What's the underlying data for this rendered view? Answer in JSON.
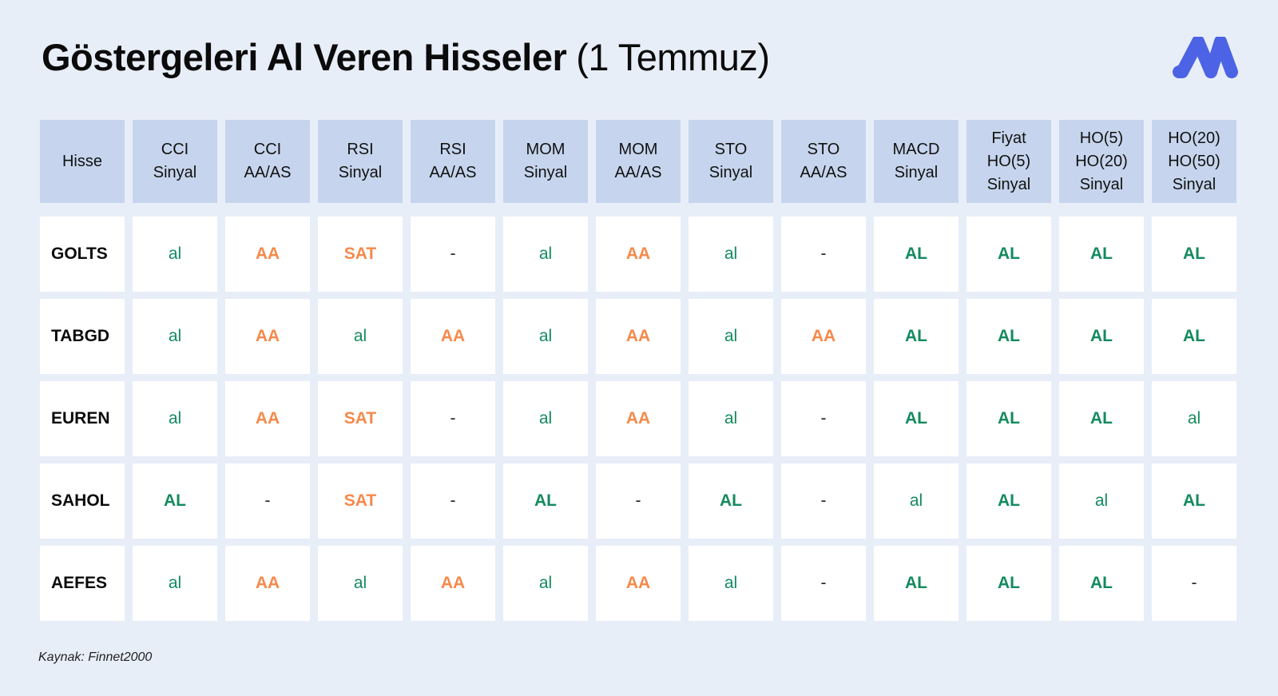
{
  "title": {
    "bold": "Göstergeleri Al Veren Hisseler",
    "light": "(1 Temmuz)"
  },
  "headers": [
    "Hisse",
    "CCI\nSinyal",
    "CCI\nAA/AS",
    "RSI\nSinyal",
    "RSI\nAA/AS",
    "MOM\nSinyal",
    "MOM\nAA/AS",
    "STO\nSinyal",
    "STO\nAA/AS",
    "MACD\nSinyal",
    "Fiyat\nHO(5)\nSinyal",
    "HO(5)\nHO(20)\nSinyal",
    "HO(20)\nHO(50)\nSinyal"
  ],
  "rows": [
    {
      "stock": "GOLTS",
      "cells": [
        "al",
        "AA",
        "SAT",
        "-",
        "al",
        "AA",
        "al",
        "-",
        "AL",
        "AL",
        "AL",
        "AL"
      ]
    },
    {
      "stock": "TABGD",
      "cells": [
        "al",
        "AA",
        "al",
        "AA",
        "al",
        "AA",
        "al",
        "AA",
        "AL",
        "AL",
        "AL",
        "AL"
      ]
    },
    {
      "stock": "EUREN",
      "cells": [
        "al",
        "AA",
        "SAT",
        "-",
        "al",
        "AA",
        "al",
        "-",
        "AL",
        "AL",
        "AL",
        "al"
      ]
    },
    {
      "stock": "SAHOL",
      "cells": [
        "AL",
        "-",
        "SAT",
        "-",
        "AL",
        "-",
        "AL",
        "-",
        "al",
        "AL",
        "al",
        "AL"
      ]
    },
    {
      "stock": "AEFES",
      "cells": [
        "al",
        "AA",
        "al",
        "AA",
        "al",
        "AA",
        "al",
        "-",
        "AL",
        "AL",
        "AL",
        "-"
      ]
    }
  ],
  "colors": {
    "positive": "#148a5e",
    "overbought": "#f5894a",
    "header_bg": "#c6d5ed",
    "page_bg": "#e8eef8",
    "logo": "#4c63e6"
  },
  "logo_icon": "brand-logo-icon",
  "source": "Kaynak: Finnet2000"
}
